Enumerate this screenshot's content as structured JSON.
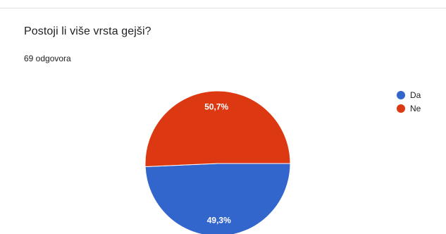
{
  "card": {
    "title": "Postoji li više vrsta gejši?",
    "response_count": "69 odgovora"
  },
  "chart_data": {
    "type": "pie",
    "categories": [
      "Da",
      "Ne"
    ],
    "values": [
      49.3,
      50.7
    ],
    "value_labels": [
      "49,3%",
      "50,7%"
    ],
    "colors": [
      "#3366cc",
      "#dc3912"
    ],
    "legend_position": "top-right"
  }
}
